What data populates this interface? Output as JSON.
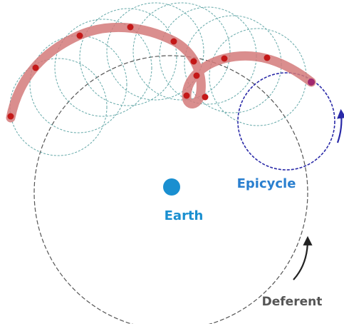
{
  "labels": {
    "earth": "Earth",
    "epicycle": "Epicycle",
    "deferent": "Deferent"
  },
  "colors": {
    "background": "#ffffff",
    "earth": "#1a8fd0",
    "earth_label": "#1a8fd0",
    "epicycle_label": "#2a7fcf",
    "epicycle_circle": "#2a2aa8",
    "deferent_circle": "#555555",
    "deferent_label": "#555555",
    "ghost_epicycles": "#4a9a9a",
    "path": "#d47a7a",
    "path_points": "#c41818",
    "current_point": "#a0286e",
    "arrow": "#222222"
  },
  "icons": {
    "deferent_arrow": "curved-arrow-icon",
    "epicycle_arrow": "curved-arrow-icon"
  }
}
